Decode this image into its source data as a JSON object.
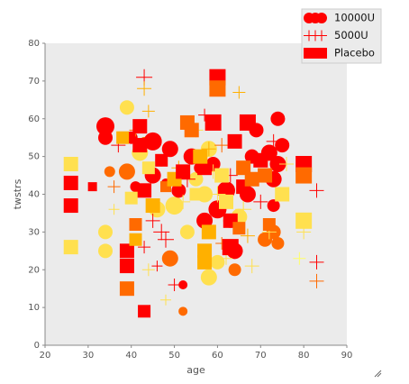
{
  "chart_data": {
    "type": "scatter",
    "x_label": "age",
    "y_label": "twstrs",
    "xlim": [
      20,
      90
    ],
    "ylim": [
      0,
      80
    ],
    "xticks": [
      20,
      30,
      40,
      50,
      60,
      70,
      80,
      90
    ],
    "yticks": [
      0,
      10,
      20,
      30,
      40,
      50,
      60,
      70,
      80
    ],
    "grid": false,
    "legend": "upper right",
    "background": "#ebebeb",
    "series": [
      {
        "name": "10000U",
        "marker": "circle",
        "color": "#ff0000",
        "x": [
          34,
          34,
          35,
          39,
          40,
          41,
          42,
          43,
          45,
          45,
          46,
          47,
          49,
          49,
          50,
          51,
          52,
          53,
          54,
          55,
          56,
          57,
          57,
          58,
          58,
          59,
          60,
          60,
          62,
          63,
          64,
          64,
          65,
          67,
          68,
          69,
          71,
          72,
          73,
          73,
          74,
          74,
          75,
          73,
          74,
          52,
          48,
          39,
          34,
          34
        ],
        "values": [
          58,
          55,
          46,
          63,
          55,
          42,
          51,
          54,
          54,
          45,
          36,
          49,
          23,
          52,
          37,
          41,
          16,
          30,
          50,
          44,
          47,
          40,
          33,
          18,
          52,
          48,
          36,
          22,
          41,
          33,
          25,
          20,
          34,
          40,
          50,
          57,
          28,
          51,
          44,
          37,
          60,
          48,
          53,
          30,
          27,
          9,
          43,
          46,
          25,
          30
        ],
        "sizes": [
          10,
          8,
          6,
          8,
          7,
          6,
          9,
          5,
          10,
          9,
          9,
          7,
          9,
          9,
          10,
          8,
          5,
          8,
          9,
          8,
          7,
          9,
          9,
          9,
          9,
          8,
          10,
          8,
          10,
          8,
          9,
          7,
          9,
          9,
          8,
          8,
          8,
          9,
          9,
          7,
          8,
          9,
          8,
          8,
          7,
          5,
          5,
          9,
          8,
          8
        ],
        "colors": [
          "#ff0000",
          "#ff0000",
          "#ff6a00",
          "#ffe04f",
          "#ff0000",
          "#ff0000",
          "#ffe04f",
          "#ff6a00",
          "#ff0000",
          "#ff0000",
          "#ffe04f",
          "#ffe04f",
          "#ff6a00",
          "#ff0000",
          "#ffe04f",
          "#ff0000",
          "#ff0000",
          "#ffe04f",
          "#ff0000",
          "#ffe04f",
          "#ff0000",
          "#ffe04f",
          "#ff0000",
          "#ffe04f",
          "#ffe04f",
          "#ff0000",
          "#ff0000",
          "#ffe04f",
          "#ff0000",
          "#ff6a00",
          "#ff0000",
          "#ff6a00",
          "#ffe04f",
          "#ff0000",
          "#ff0000",
          "#ff0000",
          "#ff6a00",
          "#ff0000",
          "#ff0000",
          "#ff0000",
          "#ff0000",
          "#ff0000",
          "#ff0000",
          "#ff6a00",
          "#ff6a00",
          "#ff6a00",
          "#ff0000",
          "#ff6a00",
          "#ffe04f",
          "#ffe04f"
        ]
      },
      {
        "name": "5000U",
        "marker": "plus",
        "color": "#ff0000",
        "x": [
          36,
          36,
          37,
          41,
          43,
          43,
          43,
          44,
          45,
          46,
          47,
          48,
          50,
          51,
          52,
          53,
          55,
          57,
          58,
          59,
          60,
          61,
          62,
          63,
          65,
          66,
          67,
          68,
          70,
          72,
          73,
          76,
          79,
          80,
          83,
          83,
          83,
          61,
          44,
          48
        ],
        "values": [
          42,
          36,
          53,
          57,
          71,
          68,
          26,
          20,
          33,
          21,
          30,
          28,
          16,
          47,
          38,
          44,
          57,
          61,
          52,
          46,
          40,
          53,
          23,
          45,
          67,
          36,
          29,
          21,
          38,
          30,
          54,
          48,
          23,
          30,
          41,
          22,
          17,
          27,
          62,
          12
        ],
        "sizes": [
          7,
          6,
          8,
          7,
          9,
          8,
          7,
          7,
          8,
          6,
          9,
          9,
          7,
          8,
          8,
          9,
          8,
          7,
          8,
          8,
          9,
          8,
          7,
          8,
          7,
          9,
          8,
          8,
          8,
          8,
          8,
          8,
          7,
          8,
          8,
          8,
          8,
          7,
          7,
          6
        ],
        "colors": [
          "#ff6a00",
          "#ffe04f",
          "#ff0000",
          "#ff6a00",
          "#ff0000",
          "#ffb000",
          "#ff0000",
          "#ffe04f",
          "#ff0000",
          "#ff0000",
          "#ff0000",
          "#ff0000",
          "#ff0000",
          "#ffb000",
          "#ffe04f",
          "#ff0000",
          "#ffe04f",
          "#ff0000",
          "#ffb000",
          "#ffe04f",
          "#ffe04f",
          "#ff6a00",
          "#ffe04f",
          "#ff0000",
          "#ffb000",
          "#ffe04f",
          "#ffb000",
          "#ffe04f",
          "#ff0000",
          "#ffe04f",
          "#ff0000",
          "#ffe04f",
          "#ffff66",
          "#ffe04f",
          "#ff0000",
          "#ff0000",
          "#ff6a00",
          "#ff6a00",
          "#ffb000",
          "#ffe04f"
        ]
      },
      {
        "name": "Placebo",
        "marker": "square",
        "color": "#ff0000",
        "x": [
          26,
          26,
          26,
          26,
          31,
          39,
          39,
          39,
          41,
          41,
          42,
          42,
          43,
          43,
          44,
          47,
          48,
          50,
          52,
          53,
          54,
          55,
          57,
          57,
          57,
          58,
          59,
          60,
          60,
          61,
          62,
          63,
          63,
          64,
          65,
          66,
          66,
          67,
          68,
          70,
          71,
          72,
          75,
          80,
          80,
          80,
          40,
          45,
          38,
          56
        ],
        "values": [
          48,
          43,
          37,
          26,
          42,
          25,
          21,
          15,
          32,
          28,
          58,
          53,
          9,
          41,
          47,
          49,
          42,
          44,
          46,
          59,
          57,
          40,
          47,
          25,
          22,
          30,
          59,
          71,
          68,
          45,
          38,
          33,
          26,
          54,
          31,
          47,
          42,
          59,
          44,
          49,
          45,
          32,
          40,
          48,
          45,
          33,
          39,
          37,
          55,
          50
        ],
        "sizes": [
          8,
          8,
          8,
          8,
          5,
          8,
          8,
          8,
          7,
          7,
          8,
          8,
          7,
          8,
          7,
          7,
          6,
          8,
          8,
          8,
          8,
          7,
          8,
          8,
          8,
          8,
          9,
          9,
          9,
          8,
          8,
          8,
          9,
          8,
          7,
          8,
          8,
          9,
          8,
          8,
          8,
          7,
          8,
          9,
          9,
          9,
          7,
          8,
          7,
          8
        ],
        "colors": [
          "#ffe04f",
          "#ff0000",
          "#ff0000",
          "#ffe04f",
          "#ff0000",
          "#ff0000",
          "#ff0000",
          "#ff6a00",
          "#ff6a00",
          "#ffb000",
          "#ff0000",
          "#ff0000",
          "#ff0000",
          "#ff0000",
          "#ffe04f",
          "#ff0000",
          "#ff6a00",
          "#ffb000",
          "#ff0000",
          "#ff6a00",
          "#ff6a00",
          "#ffe04f",
          "#ff0000",
          "#ffb000",
          "#ffb000",
          "#ffb000",
          "#ff0000",
          "#ff0000",
          "#ff6a00",
          "#ffe04f",
          "#ffe04f",
          "#ff0000",
          "#ff0000",
          "#ff0000",
          "#ff6a00",
          "#ff6a00",
          "#ff0000",
          "#ff0000",
          "#ff6a00",
          "#ff0000",
          "#ff6a00",
          "#ff6a00",
          "#ffe04f",
          "#ff0000",
          "#ff6a00",
          "#ffe04f",
          "#ffe04f",
          "#ffb000",
          "#ffb000",
          "#ffb000"
        ]
      }
    ]
  }
}
